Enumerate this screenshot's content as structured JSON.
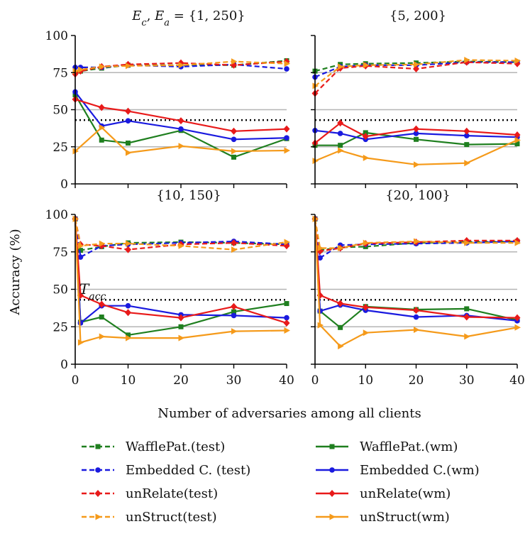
{
  "figure": {
    "xlabel": "Number of adversaries among all clients",
    "ylabel": "Accuracy (%)",
    "threshold_label": "T_acc",
    "threshold_label_main": "T",
    "threshold_label_sub": "acc"
  },
  "chart_data": [
    {
      "type": "line",
      "title": "E_c, E_a = {1, 250}",
      "title_parts": {
        "ec": "E",
        "ec_sub": "c",
        "sep": ", ",
        "ea": "E",
        "ea_sub": "a",
        "rest": " = {1, 250}"
      },
      "xlim": [
        0,
        40
      ],
      "ylim": [
        0,
        100
      ],
      "xticks": [
        0,
        10,
        20,
        30,
        40
      ],
      "yticks": [
        0,
        25,
        50,
        75,
        100
      ],
      "ytick_labels_shown": true,
      "xtick_labels_shown": false,
      "threshold": 43,
      "gridlines": [
        25,
        50,
        75
      ],
      "series": [
        {
          "name": "WafflePat.(test)",
          "x": [
            0,
            1,
            5,
            10,
            20,
            30,
            40
          ],
          "y": [
            75,
            76,
            78,
            80,
            80,
            80,
            83
          ]
        },
        {
          "name": "WafflePat.(wm)",
          "x": [
            0,
            5,
            10,
            20,
            30,
            40
          ],
          "y": [
            60,
            29.5,
            27.5,
            36,
            18,
            30.5
          ]
        },
        {
          "name": "Embedded C. (test)",
          "x": [
            0,
            1,
            5,
            10,
            20,
            30,
            40
          ],
          "y": [
            78.5,
            78.5,
            78.5,
            80,
            79,
            80.5,
            77.5
          ]
        },
        {
          "name": "Embedded C.(wm)",
          "x": [
            0,
            5,
            10,
            20,
            30,
            40
          ],
          "y": [
            62,
            39,
            42.5,
            37,
            30,
            31
          ]
        },
        {
          "name": "unRelate(test)",
          "x": [
            0,
            1,
            5,
            10,
            20,
            30,
            40
          ],
          "y": [
            74,
            76,
            79,
            80.5,
            81.5,
            80,
            82.5
          ]
        },
        {
          "name": "unRelate(wm)",
          "x": [
            0,
            5,
            10,
            20,
            30,
            40
          ],
          "y": [
            57,
            51.5,
            49,
            42.5,
            35.5,
            37
          ]
        },
        {
          "name": "unStruct(test)",
          "x": [
            0,
            1,
            5,
            10,
            20,
            30,
            40
          ],
          "y": [
            76,
            77,
            79,
            79.5,
            80,
            82.5,
            81
          ]
        },
        {
          "name": "unStruct(wm)",
          "x": [
            0,
            5,
            10,
            20,
            30,
            40
          ],
          "y": [
            22,
            38,
            21,
            25.5,
            22,
            22.5
          ]
        }
      ]
    },
    {
      "type": "line",
      "title": "{5, 200}",
      "xlim": [
        0,
        40
      ],
      "ylim": [
        0,
        100
      ],
      "xticks": [
        0,
        10,
        20,
        30,
        40
      ],
      "yticks": [
        0,
        25,
        50,
        75,
        100
      ],
      "ytick_labels_shown": false,
      "xtick_labels_shown": false,
      "threshold": 43,
      "gridlines": [
        25,
        50,
        75
      ],
      "series": [
        {
          "name": "WafflePat.(test)",
          "x": [
            0,
            5,
            10,
            20,
            30,
            40
          ],
          "y": [
            76,
            80.5,
            81,
            81.5,
            82.5,
            82
          ]
        },
        {
          "name": "WafflePat.(wm)",
          "x": [
            0,
            5,
            10,
            20,
            30,
            40
          ],
          "y": [
            26,
            26,
            34.5,
            30,
            26.5,
            27
          ]
        },
        {
          "name": "Embedded C. (test)",
          "x": [
            0,
            5,
            10,
            20,
            30,
            40
          ],
          "y": [
            72,
            79,
            80,
            80,
            82,
            82
          ]
        },
        {
          "name": "Embedded C.(wm)",
          "x": [
            0,
            5,
            10,
            20,
            30,
            40
          ],
          "y": [
            36,
            34,
            30,
            34,
            32.5,
            31.5
          ]
        },
        {
          "name": "unRelate(test)",
          "x": [
            0,
            5,
            10,
            20,
            30,
            40
          ],
          "y": [
            61,
            78,
            79.5,
            77.5,
            82,
            81
          ]
        },
        {
          "name": "unRelate(wm)",
          "x": [
            0,
            5,
            10,
            20,
            30,
            40
          ],
          "y": [
            27.5,
            41,
            32,
            37,
            35.5,
            33
          ]
        },
        {
          "name": "unStruct(test)",
          "x": [
            0,
            5,
            10,
            20,
            30,
            40
          ],
          "y": [
            66,
            79,
            80,
            80.5,
            83.5,
            83
          ]
        },
        {
          "name": "unStruct(wm)",
          "x": [
            0,
            5,
            10,
            20,
            30,
            40
          ],
          "y": [
            15.5,
            22.5,
            17.5,
            13,
            14,
            29.5
          ]
        }
      ]
    },
    {
      "type": "line",
      "title": "{10, 150}",
      "xlim": [
        0,
        40
      ],
      "ylim": [
        0,
        100
      ],
      "xticks": [
        0,
        10,
        20,
        30,
        40
      ],
      "yticks": [
        0,
        25,
        50,
        75,
        100
      ],
      "ytick_labels_shown": true,
      "xtick_labels_shown": true,
      "threshold": 43,
      "gridlines": [
        25,
        50,
        75
      ],
      "series": [
        {
          "name": "WafflePat.(test)",
          "x": [
            0,
            1,
            5,
            10,
            20,
            30,
            40
          ],
          "y": [
            97,
            76,
            78.5,
            81,
            81.5,
            81,
            80
          ]
        },
        {
          "name": "WafflePat.(wm)",
          "x": [
            0,
            1,
            5,
            10,
            20,
            30,
            40
          ],
          "y": [
            97,
            28,
            31.5,
            19.5,
            25,
            35,
            40.5
          ]
        },
        {
          "name": "Embedded C. (test)",
          "x": [
            0,
            1,
            5,
            10,
            20,
            30,
            40
          ],
          "y": [
            97,
            71.5,
            79,
            80,
            81,
            82,
            80
          ]
        },
        {
          "name": "Embedded C.(wm)",
          "x": [
            0,
            1,
            5,
            10,
            20,
            30,
            40
          ],
          "y": [
            97,
            27.5,
            39,
            39,
            33,
            32.5,
            31
          ]
        },
        {
          "name": "unRelate(test)",
          "x": [
            0,
            1,
            5,
            10,
            20,
            30,
            40
          ],
          "y": [
            97,
            80,
            79,
            76.5,
            80,
            81,
            79
          ]
        },
        {
          "name": "unRelate(wm)",
          "x": [
            0,
            1,
            5,
            10,
            20,
            30,
            40
          ],
          "y": [
            97,
            46,
            40,
            34.5,
            31,
            38.5,
            27.5
          ]
        },
        {
          "name": "unStruct(test)",
          "x": [
            0,
            1,
            5,
            10,
            20,
            30,
            40
          ],
          "y": [
            97,
            79,
            80.5,
            80.5,
            79,
            76.5,
            81.5
          ]
        },
        {
          "name": "unStruct(wm)",
          "x": [
            0,
            1,
            5,
            10,
            20,
            30,
            40
          ],
          "y": [
            97,
            14.5,
            18.5,
            17.5,
            17.5,
            22,
            22.5
          ]
        }
      ]
    },
    {
      "type": "line",
      "title": "{20, 100}",
      "xlim": [
        0,
        40
      ],
      "ylim": [
        0,
        100
      ],
      "xticks": [
        0,
        10,
        20,
        30,
        40
      ],
      "yticks": [
        0,
        25,
        50,
        75,
        100
      ],
      "ytick_labels_shown": false,
      "xtick_labels_shown": true,
      "threshold": 43,
      "gridlines": [
        25,
        50,
        75
      ],
      "series": [
        {
          "name": "WafflePat.(test)",
          "x": [
            0,
            1,
            5,
            10,
            20,
            30,
            40
          ],
          "y": [
            97,
            76,
            78,
            78.5,
            81,
            81.5,
            82
          ]
        },
        {
          "name": "WafflePat.(wm)",
          "x": [
            0,
            1,
            5,
            10,
            20,
            30,
            40
          ],
          "y": [
            97,
            35.5,
            24.5,
            38.5,
            36.5,
            37,
            29.5
          ]
        },
        {
          "name": "Embedded C. (test)",
          "x": [
            0,
            1,
            5,
            10,
            20,
            30,
            40
          ],
          "y": [
            97,
            71,
            79.5,
            80,
            80.5,
            81,
            82
          ]
        },
        {
          "name": "Embedded C.(wm)",
          "x": [
            0,
            1,
            5,
            10,
            20,
            30,
            40
          ],
          "y": [
            97,
            35.5,
            39.5,
            36,
            31.5,
            32.5,
            29
          ]
        },
        {
          "name": "unRelate(test)",
          "x": [
            0,
            1,
            5,
            10,
            20,
            30,
            40
          ],
          "y": [
            97,
            75.5,
            77.5,
            80.5,
            81.5,
            82.5,
            82.5
          ]
        },
        {
          "name": "unRelate(wm)",
          "x": [
            0,
            1,
            5,
            10,
            20,
            30,
            40
          ],
          "y": [
            97,
            46,
            40.5,
            38,
            36,
            31.5,
            31
          ]
        },
        {
          "name": "unStruct(test)",
          "x": [
            0,
            1,
            5,
            10,
            20,
            30,
            40
          ],
          "y": [
            97,
            77.5,
            77.5,
            81,
            82,
            81,
            81
          ]
        },
        {
          "name": "unStruct(wm)",
          "x": [
            0,
            1,
            5,
            10,
            20,
            30,
            40
          ],
          "y": [
            97,
            26,
            12,
            21,
            23,
            18.5,
            24.5
          ]
        }
      ]
    }
  ],
  "legend": [
    {
      "label": "WafflePat.(test)",
      "color": "#1f7f1f",
      "dashed": true,
      "marker": "square"
    },
    {
      "label": "WafflePat.(wm)",
      "color": "#1f7f1f",
      "dashed": false,
      "marker": "square"
    },
    {
      "label": "Embedded C. (test)",
      "color": "#1a1adf",
      "dashed": true,
      "marker": "circle"
    },
    {
      "label": "Embedded C.(wm)",
      "color": "#1a1adf",
      "dashed": false,
      "marker": "circle"
    },
    {
      "label": "unRelate(test)",
      "color": "#e81a1a",
      "dashed": true,
      "marker": "diamond"
    },
    {
      "label": "unRelate(wm)",
      "color": "#e81a1a",
      "dashed": false,
      "marker": "diamond"
    },
    {
      "label": "unStruct(test)",
      "color": "#f59a1a",
      "dashed": true,
      "marker": "triangle-right"
    },
    {
      "label": "unStruct(wm)",
      "color": "#f59a1a",
      "dashed": false,
      "marker": "triangle-right"
    }
  ],
  "colors": {
    "grid": "#b5b5b5",
    "threshold": "#000000",
    "axis": "#000000"
  }
}
